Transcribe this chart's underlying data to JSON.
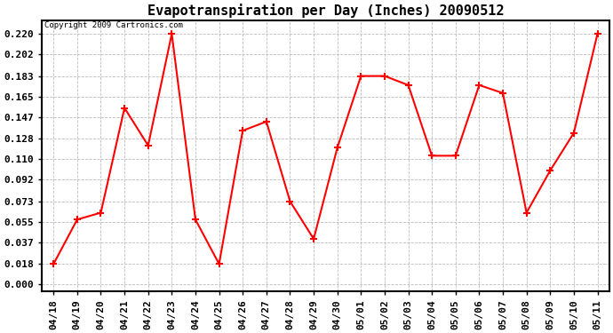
{
  "title": "Evapotranspiration per Day (Inches) 20090512",
  "copyright_text": "Copyright 2009 Cartronics.com",
  "x_labels": [
    "04/18",
    "04/19",
    "04/20",
    "04/21",
    "04/22",
    "04/23",
    "04/24",
    "04/25",
    "04/26",
    "04/27",
    "04/28",
    "04/29",
    "04/30",
    "05/01",
    "05/02",
    "05/03",
    "05/04",
    "05/05",
    "05/06",
    "05/07",
    "05/08",
    "05/09",
    "05/10",
    "05/11"
  ],
  "y_values": [
    0.018,
    0.057,
    0.063,
    0.155,
    0.122,
    0.22,
    0.057,
    0.018,
    0.135,
    0.143,
    0.073,
    0.04,
    0.12,
    0.183,
    0.183,
    0.175,
    0.113,
    0.113,
    0.175,
    0.168,
    0.063,
    0.1,
    0.133,
    0.22
  ],
  "y_ticks": [
    0.0,
    0.018,
    0.037,
    0.055,
    0.073,
    0.092,
    0.11,
    0.128,
    0.147,
    0.165,
    0.183,
    0.202,
    0.22
  ],
  "line_color": "#ff0000",
  "marker": "+",
  "marker_size": 6,
  "marker_edge_width": 1.5,
  "line_width": 1.5,
  "bg_color": "#ffffff",
  "grid_color": "#bbbbbb",
  "title_fontsize": 11,
  "tick_fontsize": 8,
  "ylabel_fontweight": "bold",
  "copyright_fontsize": 6.5
}
